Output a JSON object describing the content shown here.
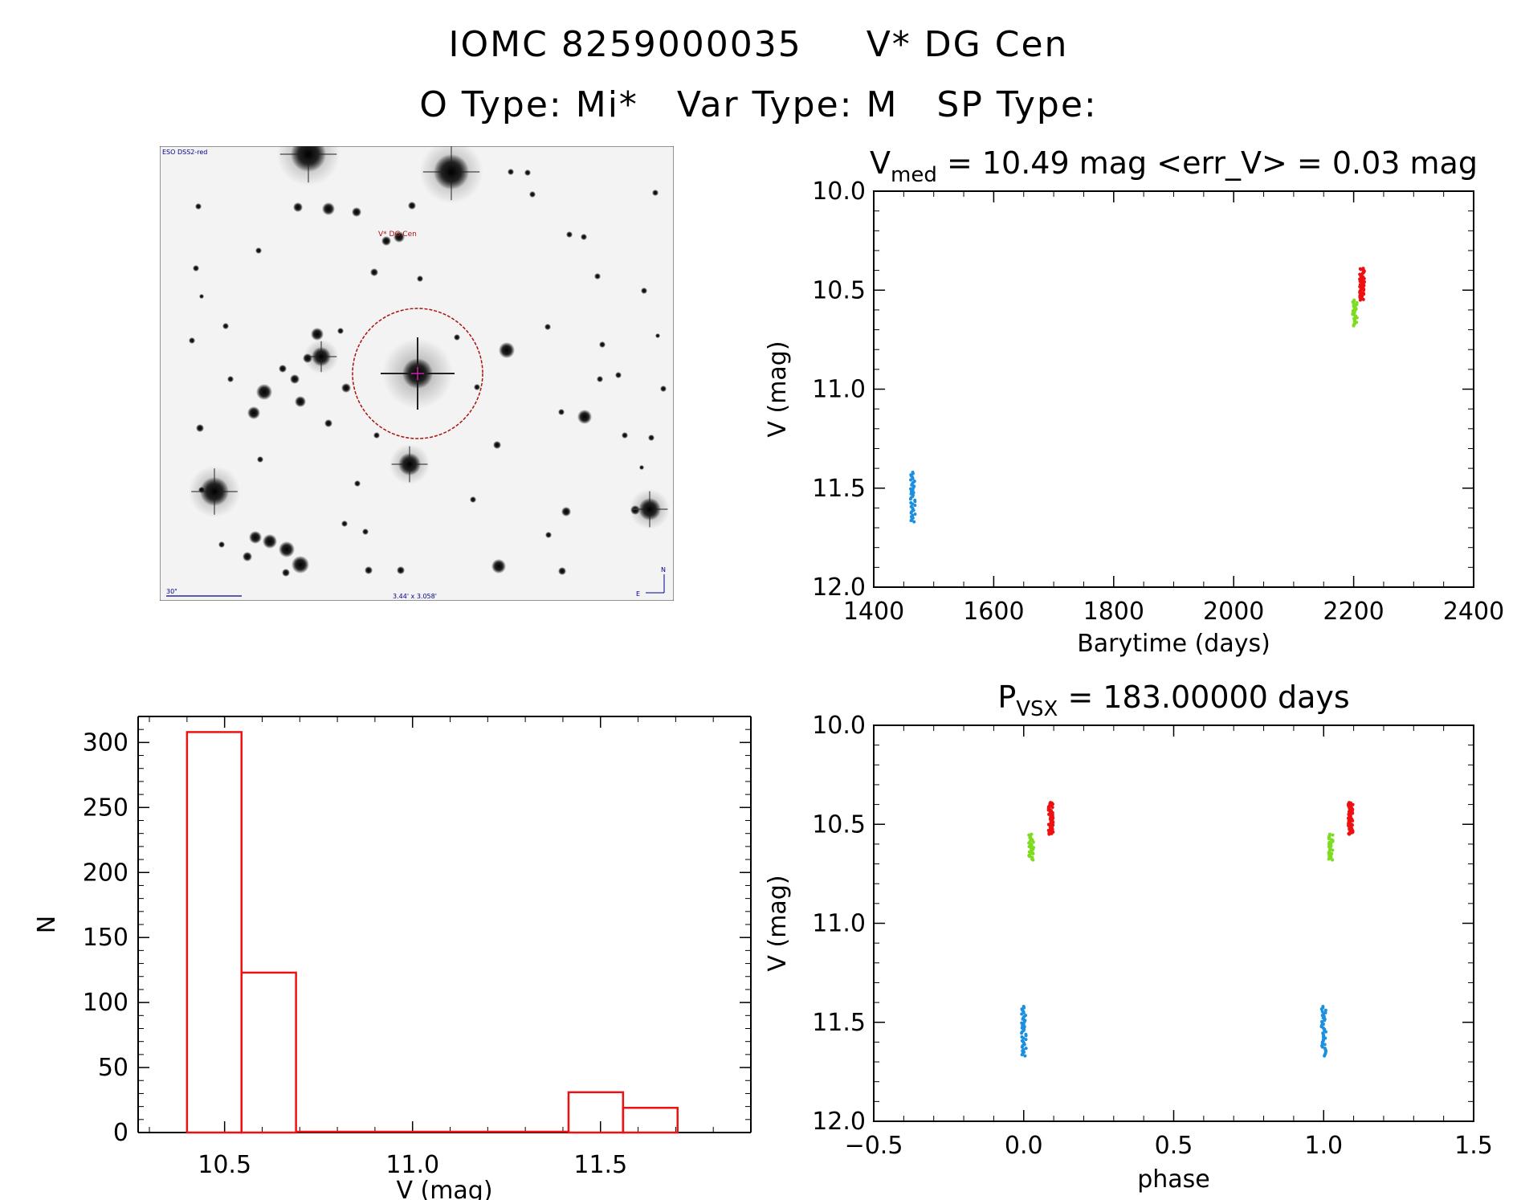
{
  "header": {
    "line1": "IOMC 8259000035     V* DG Cen",
    "line2": "O Type: Mi*   Var Type: M   SP Type:"
  },
  "finder": {
    "survey_label": "ESO DSS2-red",
    "target_label": "V* DG Cen",
    "scale_label": "30\"",
    "fov_label": "3.44' x 3.058'",
    "north_label": "N",
    "east_label": "E"
  },
  "colors": {
    "early_points": "#1b8fe0",
    "mid_points": "#7ddc1f",
    "late_points": "#ee1111",
    "histogram": "#ee1111",
    "finder_circle": "#aa1111"
  },
  "chart_data": [
    {
      "id": "lightcurve",
      "type": "scatter",
      "title_main": "V",
      "title_sub": "med",
      "title_rest": " = 10.49 mag <err_V> = 0.03 mag",
      "xlabel": "Barytime (days)",
      "ylabel": "V (mag)",
      "xlim": [
        1400,
        2400
      ],
      "ylim": [
        12.0,
        10.0
      ],
      "xticks": [
        "1400",
        "1600",
        "1800",
        "2000",
        "2200",
        "2400"
      ],
      "yticks": [
        "10.0",
        "10.5",
        "11.0",
        "11.5",
        "12.0"
      ],
      "series": [
        {
          "color_key": "early_points",
          "x": 1465,
          "y_range": [
            11.42,
            11.67
          ],
          "n": 40
        },
        {
          "color_key": "mid_points",
          "x": 2202,
          "y_range": [
            10.55,
            10.68
          ],
          "n": 30
        },
        {
          "color_key": "late_points",
          "x": 2214,
          "y_range": [
            10.39,
            10.55
          ],
          "n": 60
        }
      ]
    },
    {
      "id": "phased",
      "type": "scatter",
      "title_main": "P",
      "title_sub": "VSX",
      "title_rest": " = 183.00000 days",
      "xlabel": "phase",
      "ylabel": "V (mag)",
      "xlim": [
        -0.5,
        1.5
      ],
      "ylim": [
        12.0,
        10.0
      ],
      "xticks": [
        "−0.5",
        "0.0",
        "0.5",
        "1.0",
        "1.5"
      ],
      "yticks": [
        "10.0",
        "10.5",
        "11.0",
        "11.5",
        "12.0"
      ],
      "series": [
        {
          "color_key": "early_points",
          "x": [
            0.0,
            1.0
          ],
          "y_range": [
            11.42,
            11.67
          ],
          "n": 40
        },
        {
          "color_key": "mid_points",
          "x": [
            0.025,
            1.025
          ],
          "y_range": [
            10.55,
            10.68
          ],
          "n": 30
        },
        {
          "color_key": "late_points",
          "x": [
            0.09,
            1.09
          ],
          "y_range": [
            10.39,
            10.55
          ],
          "n": 60
        }
      ]
    },
    {
      "id": "histogram",
      "type": "bar",
      "xlabel": "V (mag)",
      "ylabel": "N",
      "xlim": [
        10.27,
        11.9
      ],
      "ylim": [
        0,
        320
      ],
      "xticks": [
        "10.5",
        "11.0",
        "11.5"
      ],
      "yticks": [
        "0",
        "50",
        "100",
        "150",
        "200",
        "250",
        "300"
      ],
      "bins": [
        {
          "x0": 10.4,
          "x1": 10.545,
          "count": 308
        },
        {
          "x0": 10.545,
          "x1": 10.69,
          "count": 123
        },
        {
          "x0": 10.69,
          "x1": 10.835,
          "count": 0
        },
        {
          "x0": 10.835,
          "x1": 10.98,
          "count": 0
        },
        {
          "x0": 10.98,
          "x1": 11.125,
          "count": 0
        },
        {
          "x0": 11.125,
          "x1": 11.27,
          "count": 0
        },
        {
          "x0": 11.27,
          "x1": 11.415,
          "count": 0
        },
        {
          "x0": 11.415,
          "x1": 11.56,
          "count": 31
        },
        {
          "x0": 11.56,
          "x1": 11.705,
          "count": 19
        }
      ]
    }
  ]
}
